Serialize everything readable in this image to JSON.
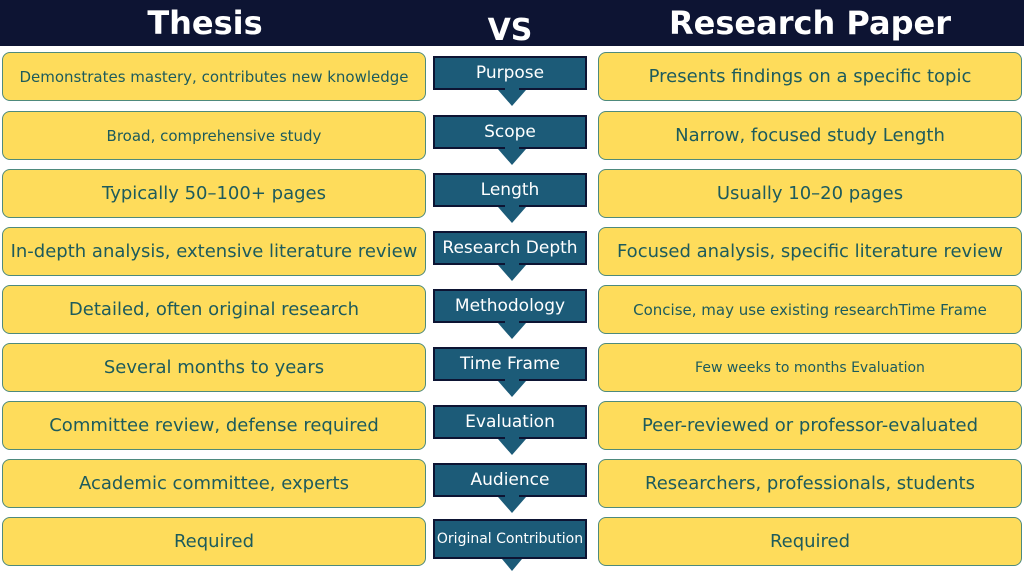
{
  "header": {
    "left_title": "Thesis",
    "vs": "VS",
    "right_title": "Research Paper"
  },
  "colors": {
    "header_bg": "#0d1433",
    "box_fill": "#fedc5b",
    "box_text": "#1d5b5c",
    "center_fill": "#1c5b78"
  },
  "rows": [
    {
      "criterion": "Purpose",
      "thesis": "Demonstrates mastery, contributes new knowledge",
      "paper": "Presents findings on a specific topic"
    },
    {
      "criterion": "Scope",
      "thesis": "Broad, comprehensive study",
      "paper": "Narrow, focused study Length"
    },
    {
      "criterion": "Length",
      "thesis": "Typically 50–100+ pages",
      "paper": "Usually 10–20 pages"
    },
    {
      "criterion": "Research Depth",
      "thesis": "In-depth analysis, extensive literature review",
      "paper": "Focused analysis, specific literature review"
    },
    {
      "criterion": "Methodology",
      "thesis": "Detailed, often original research",
      "paper": "Concise, may use existing researchTime Frame"
    },
    {
      "criterion": "Time Frame",
      "thesis": "Several months to years",
      "paper": "Few weeks to months Evaluation"
    },
    {
      "criterion": "Evaluation",
      "thesis": "Committee review, defense required",
      "paper": "Peer-reviewed or professor-evaluated"
    },
    {
      "criterion": "Audience",
      "thesis": "Academic committee, experts",
      "paper": "Researchers, professionals, students"
    },
    {
      "criterion": "Original Contribution",
      "thesis": "Required",
      "paper": "Required"
    }
  ]
}
